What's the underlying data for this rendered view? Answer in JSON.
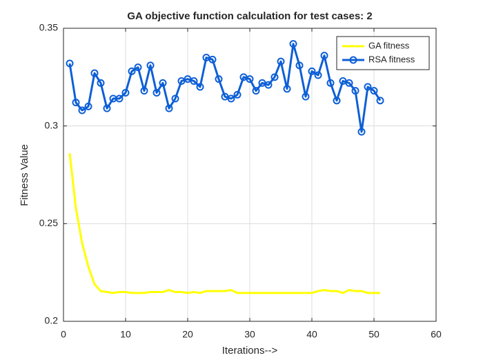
{
  "chart_data": {
    "type": "line",
    "title": "GA objective function calculation for test cases: 2",
    "x_label": "Iterations-->",
    "y_label": "Fitness Value",
    "x": [
      1,
      2,
      3,
      4,
      5,
      6,
      7,
      8,
      9,
      10,
      11,
      12,
      13,
      14,
      15,
      16,
      17,
      18,
      19,
      20,
      21,
      22,
      23,
      24,
      25,
      26,
      27,
      28,
      29,
      30,
      31,
      32,
      33,
      34,
      35,
      36,
      37,
      38,
      39,
      40,
      41,
      42,
      43,
      44,
      45,
      46,
      47,
      48,
      49,
      50,
      51
    ],
    "series": [
      {
        "name": "GA fitness",
        "color": "#ffff00",
        "values": [
          0.286,
          0.258,
          0.24,
          0.228,
          0.219,
          0.2155,
          0.215,
          0.2145,
          0.215,
          0.215,
          0.2145,
          0.2145,
          0.2145,
          0.215,
          0.215,
          0.215,
          0.216,
          0.215,
          0.215,
          0.2145,
          0.215,
          0.2145,
          0.2155,
          0.2155,
          0.2155,
          0.2155,
          0.216,
          0.2145,
          0.2145,
          0.2145,
          0.2145,
          0.2145,
          0.2145,
          0.2145,
          0.2145,
          0.2145,
          0.2145,
          0.2145,
          0.2145,
          0.2145,
          0.2155,
          0.216,
          0.2155,
          0.2155,
          0.2145,
          0.216,
          0.2155,
          0.2155,
          0.2145,
          0.2145,
          0.2145
        ]
      },
      {
        "name": "RSA fitness",
        "color": "#0d5fd6",
        "marker": "circle",
        "values": [
          0.332,
          0.312,
          0.308,
          0.31,
          0.327,
          0.322,
          0.309,
          0.314,
          0.314,
          0.317,
          0.328,
          0.33,
          0.318,
          0.331,
          0.317,
          0.322,
          0.309,
          0.314,
          0.323,
          0.324,
          0.323,
          0.32,
          0.335,
          0.334,
          0.324,
          0.315,
          0.314,
          0.316,
          0.325,
          0.324,
          0.318,
          0.322,
          0.321,
          0.325,
          0.333,
          0.319,
          0.342,
          0.331,
          0.315,
          0.328,
          0.326,
          0.336,
          0.322,
          0.313,
          0.323,
          0.322,
          0.318,
          0.297,
          0.32,
          0.318,
          0.313
        ]
      }
    ],
    "xlim": [
      0,
      60
    ],
    "xticks": [
      0,
      10,
      20,
      30,
      40,
      50,
      60
    ],
    "ylim": [
      0.2,
      0.35
    ],
    "yticks": [
      0.2,
      0.25,
      0.3,
      0.35
    ],
    "grid": true,
    "legend_loc": "northeast"
  }
}
